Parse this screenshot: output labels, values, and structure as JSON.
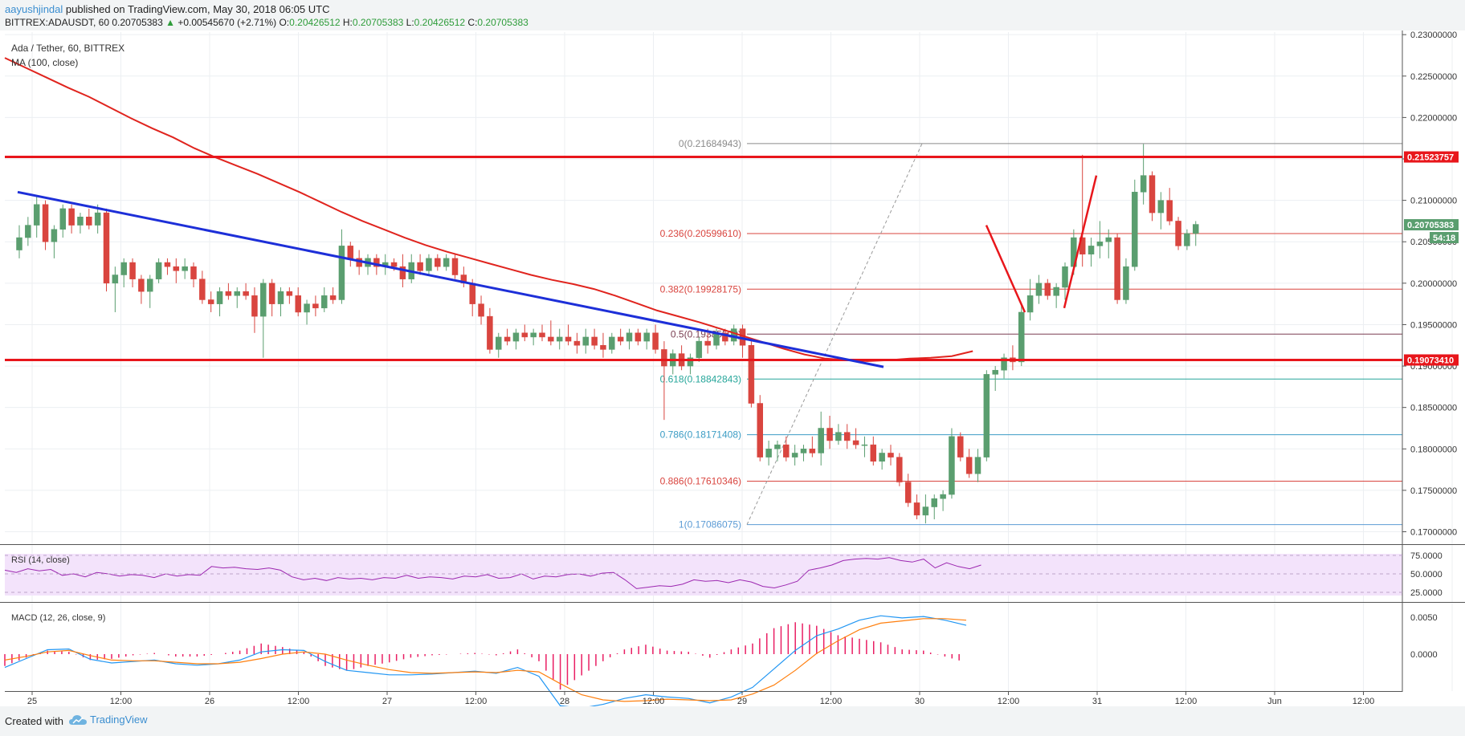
{
  "header": {
    "publisher": "aayushjindal",
    "publish_text": "published on TradingView.com, May 30, 2018 06:05 UTC",
    "symbol": "BITTREX:ADAUSDT, 60",
    "last_price": "0.20705383",
    "change": "+0.00545670 (+2.71%)",
    "open_label": "O:",
    "open": "0.20426512",
    "high_label": "H:",
    "high": "0.20705383",
    "low_label": "L:",
    "low": "0.20426512",
    "close_label": "C:",
    "close": "0.20705383"
  },
  "legend": {
    "instrument": "Ada / Tether, 60, BITTREX",
    "ma": "MA (100, close)",
    "rsi": "RSI (14, close)",
    "macd": "MACD (12, 26, close, 9)"
  },
  "price_axis": {
    "ticks": [
      "0.23000000",
      "0.22500000",
      "0.22000000",
      "0.21500000",
      "0.21000000",
      "0.20500000",
      "0.20000000",
      "0.19500000",
      "0.19000000",
      "0.18500000",
      "0.18000000",
      "0.17500000",
      "0.17000000"
    ],
    "current_price_tag": "0.20705383",
    "countdown_tag": "54:18",
    "resistance_tag": "0.21523757",
    "support_tag": "0.19073410"
  },
  "rsi_axis": {
    "ticks": [
      "75.0000",
      "50.0000",
      "25.0000"
    ]
  },
  "macd_axis": {
    "ticks": [
      "0.0050",
      "0.0000"
    ]
  },
  "time_axis": {
    "labels": [
      "25",
      "12:00",
      "26",
      "12:00",
      "27",
      "12:00",
      "28",
      "12:00",
      "29",
      "12:00",
      "30",
      "12:00",
      "31",
      "12:00",
      "Jun",
      "12:00"
    ]
  },
  "fib_labels": [
    "0(0.21684943)",
    "0.236(0.20599610)",
    "0.382(0.19928175)",
    "0.5(0.19385509)",
    "0.618(0.18842843)",
    "0.786(0.18171408)",
    "0.886(0.17610346)",
    "1(0.17086075)"
  ],
  "footer": {
    "created_with": "Created with",
    "brand": "TradingView"
  },
  "colors": {
    "up": "#5a9e6f",
    "down": "#d9453f",
    "ma": "#e0241e",
    "trendline": "#1d2fd8",
    "level": "#e8161b",
    "rsi": "#9c27b0",
    "macd": "#2196f3",
    "signal": "#ff7f0e",
    "hist": "#e91e63"
  },
  "chart_data": {
    "type": "candlestick",
    "title": "Ada / Tether, 60, BITTREX",
    "ylim": [
      0.1685,
      0.2305
    ],
    "candles": [
      [
        0.204,
        0.207,
        0.203,
        0.2055
      ],
      [
        0.2055,
        0.208,
        0.2045,
        0.207
      ],
      [
        0.207,
        0.2105,
        0.2055,
        0.2095
      ],
      [
        0.2095,
        0.21,
        0.204,
        0.205
      ],
      [
        0.205,
        0.207,
        0.203,
        0.2065
      ],
      [
        0.2065,
        0.2095,
        0.2055,
        0.209
      ],
      [
        0.209,
        0.2095,
        0.206,
        0.207
      ],
      [
        0.207,
        0.2085,
        0.206,
        0.208
      ],
      [
        0.208,
        0.209,
        0.2065,
        0.207
      ],
      [
        0.207,
        0.2095,
        0.206,
        0.2085
      ],
      [
        0.2085,
        0.209,
        0.199,
        0.2
      ],
      [
        0.2,
        0.202,
        0.1965,
        0.201
      ],
      [
        0.201,
        0.203,
        0.1995,
        0.2025
      ],
      [
        0.2025,
        0.203,
        0.1995,
        0.2005
      ],
      [
        0.2005,
        0.201,
        0.1975,
        0.199
      ],
      [
        0.199,
        0.201,
        0.197,
        0.2005
      ],
      [
        0.2005,
        0.203,
        0.2,
        0.2025
      ],
      [
        0.2025,
        0.203,
        0.201,
        0.202
      ],
      [
        0.202,
        0.203,
        0.2,
        0.2015
      ],
      [
        0.2015,
        0.203,
        0.2005,
        0.202
      ],
      [
        0.202,
        0.2025,
        0.1995,
        0.2005
      ],
      [
        0.2005,
        0.2015,
        0.1975,
        0.198
      ],
      [
        0.198,
        0.199,
        0.1965,
        0.1975
      ],
      [
        0.1975,
        0.1995,
        0.196,
        0.199
      ],
      [
        0.199,
        0.2,
        0.198,
        0.1985
      ],
      [
        0.1985,
        0.1995,
        0.197,
        0.199
      ],
      [
        0.199,
        0.2,
        0.198,
        0.1985
      ],
      [
        0.1985,
        0.1995,
        0.194,
        0.196
      ],
      [
        0.196,
        0.2005,
        0.191,
        0.2
      ],
      [
        0.2,
        0.2005,
        0.196,
        0.1975
      ],
      [
        0.1975,
        0.1995,
        0.196,
        0.199
      ],
      [
        0.199,
        0.1995,
        0.1975,
        0.1985
      ],
      [
        0.1985,
        0.1995,
        0.196,
        0.1965
      ],
      [
        0.1965,
        0.198,
        0.195,
        0.1975
      ],
      [
        0.1975,
        0.1985,
        0.196,
        0.197
      ],
      [
        0.197,
        0.1995,
        0.1965,
        0.1985
      ],
      [
        0.1985,
        0.1995,
        0.1975,
        0.198
      ],
      [
        0.198,
        0.2065,
        0.1975,
        0.2045
      ],
      [
        0.2045,
        0.205,
        0.202,
        0.203
      ],
      [
        0.203,
        0.204,
        0.201,
        0.202
      ],
      [
        0.202,
        0.2035,
        0.201,
        0.203
      ],
      [
        0.203,
        0.2035,
        0.201,
        0.202
      ],
      [
        0.202,
        0.2035,
        0.201,
        0.2025
      ],
      [
        0.2025,
        0.203,
        0.2015,
        0.202
      ],
      [
        0.202,
        0.2035,
        0.1995,
        0.2005
      ],
      [
        0.2005,
        0.2035,
        0.2,
        0.2025
      ],
      [
        0.2025,
        0.2035,
        0.201,
        0.2015
      ],
      [
        0.2015,
        0.2035,
        0.201,
        0.203
      ],
      [
        0.203,
        0.2035,
        0.2015,
        0.202
      ],
      [
        0.202,
        0.2035,
        0.2015,
        0.203
      ],
      [
        0.203,
        0.2035,
        0.2005,
        0.201
      ],
      [
        0.201,
        0.202,
        0.1995,
        0.2
      ],
      [
        0.2,
        0.2005,
        0.196,
        0.1975
      ],
      [
        0.1975,
        0.1985,
        0.195,
        0.196
      ],
      [
        0.196,
        0.197,
        0.1915,
        0.192
      ],
      [
        0.192,
        0.194,
        0.191,
        0.1935
      ],
      [
        0.1935,
        0.1945,
        0.1925,
        0.193
      ],
      [
        0.193,
        0.1945,
        0.192,
        0.194
      ],
      [
        0.194,
        0.195,
        0.193,
        0.1935
      ],
      [
        0.1935,
        0.1945,
        0.1925,
        0.194
      ],
      [
        0.194,
        0.195,
        0.193,
        0.1935
      ],
      [
        0.1935,
        0.1955,
        0.1925,
        0.193
      ],
      [
        0.193,
        0.1945,
        0.192,
        0.1935
      ],
      [
        0.1935,
        0.195,
        0.1925,
        0.193
      ],
      [
        0.193,
        0.194,
        0.1915,
        0.1925
      ],
      [
        0.1925,
        0.1945,
        0.1915,
        0.1935
      ],
      [
        0.1935,
        0.1945,
        0.192,
        0.1925
      ],
      [
        0.1925,
        0.194,
        0.191,
        0.192
      ],
      [
        0.192,
        0.194,
        0.1915,
        0.1935
      ],
      [
        0.1935,
        0.1945,
        0.1925,
        0.193
      ],
      [
        0.193,
        0.1945,
        0.192,
        0.194
      ],
      [
        0.194,
        0.1945,
        0.1925,
        0.193
      ],
      [
        0.193,
        0.1945,
        0.192,
        0.194
      ],
      [
        0.194,
        0.195,
        0.1915,
        0.192
      ],
      [
        0.192,
        0.193,
        0.1835,
        0.19
      ],
      [
        0.19,
        0.192,
        0.189,
        0.1915
      ],
      [
        0.1915,
        0.1925,
        0.1895,
        0.19
      ],
      [
        0.19,
        0.1915,
        0.189,
        0.191
      ],
      [
        0.191,
        0.1935,
        0.1905,
        0.193
      ],
      [
        0.193,
        0.1945,
        0.1915,
        0.1925
      ],
      [
        0.1925,
        0.1945,
        0.192,
        0.194
      ],
      [
        0.194,
        0.1945,
        0.1925,
        0.193
      ],
      [
        0.193,
        0.195,
        0.1925,
        0.1945
      ],
      [
        0.1945,
        0.195,
        0.191,
        0.1925
      ],
      [
        0.1925,
        0.193,
        0.185,
        0.1855
      ],
      [
        0.1855,
        0.1865,
        0.1785,
        0.179
      ],
      [
        0.179,
        0.181,
        0.178,
        0.18
      ],
      [
        0.18,
        0.181,
        0.1785,
        0.1805
      ],
      [
        0.1805,
        0.1815,
        0.1785,
        0.179
      ],
      [
        0.179,
        0.1805,
        0.178,
        0.1795
      ],
      [
        0.1795,
        0.1805,
        0.1785,
        0.18
      ],
      [
        0.18,
        0.1815,
        0.179,
        0.1795
      ],
      [
        0.1795,
        0.1845,
        0.178,
        0.1825
      ],
      [
        0.1825,
        0.184,
        0.18,
        0.181
      ],
      [
        0.181,
        0.183,
        0.1805,
        0.182
      ],
      [
        0.182,
        0.183,
        0.18,
        0.181
      ],
      [
        0.181,
        0.1825,
        0.18,
        0.1805
      ],
      [
        0.1805,
        0.1815,
        0.179,
        0.1805
      ],
      [
        0.1805,
        0.1815,
        0.178,
        0.1785
      ],
      [
        0.1785,
        0.18,
        0.1775,
        0.1795
      ],
      [
        0.1795,
        0.1805,
        0.178,
        0.179
      ],
      [
        0.179,
        0.1795,
        0.1755,
        0.176
      ],
      [
        0.176,
        0.177,
        0.173,
        0.1735
      ],
      [
        0.1735,
        0.1745,
        0.1715,
        0.172
      ],
      [
        0.172,
        0.1745,
        0.171,
        0.173
      ],
      [
        0.173,
        0.1745,
        0.1715,
        0.174
      ],
      [
        0.174,
        0.175,
        0.1725,
        0.1745
      ],
      [
        0.1745,
        0.1825,
        0.174,
        0.1815
      ],
      [
        0.1815,
        0.182,
        0.1785,
        0.179
      ],
      [
        0.179,
        0.18,
        0.1765,
        0.177
      ],
      [
        0.177,
        0.18,
        0.176,
        0.179
      ],
      [
        0.179,
        0.1895,
        0.1785,
        0.189
      ],
      [
        0.189,
        0.19,
        0.187,
        0.1895
      ],
      [
        0.1895,
        0.1915,
        0.1885,
        0.191
      ],
      [
        0.191,
        0.1925,
        0.1895,
        0.1905
      ],
      [
        0.1905,
        0.1975,
        0.19,
        0.1965
      ],
      [
        0.1965,
        0.2005,
        0.1955,
        0.1985
      ],
      [
        0.1985,
        0.201,
        0.1975,
        0.2
      ],
      [
        0.2,
        0.2005,
        0.198,
        0.1985
      ],
      [
        0.1985,
        0.2,
        0.197,
        0.1995
      ],
      [
        0.1995,
        0.2025,
        0.198,
        0.202
      ],
      [
        0.202,
        0.2065,
        0.201,
        0.2055
      ],
      [
        0.2055,
        0.2155,
        0.202,
        0.2035
      ],
      [
        0.2035,
        0.2055,
        0.202,
        0.2045
      ],
      [
        0.2045,
        0.2075,
        0.203,
        0.205
      ],
      [
        0.205,
        0.2065,
        0.203,
        0.2055
      ],
      [
        0.2055,
        0.206,
        0.1975,
        0.198
      ],
      [
        0.198,
        0.203,
        0.1975,
        0.202
      ],
      [
        0.202,
        0.2125,
        0.2015,
        0.211
      ],
      [
        0.211,
        0.2168,
        0.2095,
        0.213
      ],
      [
        0.213,
        0.2135,
        0.2075,
        0.2085
      ],
      [
        0.2085,
        0.211,
        0.2065,
        0.21
      ],
      [
        0.21,
        0.2115,
        0.207,
        0.2075
      ],
      [
        0.2075,
        0.208,
        0.204,
        0.2045
      ],
      [
        0.2045,
        0.2065,
        0.204,
        0.206
      ],
      [
        0.206,
        0.2075,
        0.2045,
        0.2071
      ]
    ],
    "ma100": [
      0.2272,
      0.226,
      0.2248,
      0.2236,
      0.2225,
      0.2212,
      0.2199,
      0.2187,
      0.2176,
      0.2163,
      0.2152,
      0.2142,
      0.2132,
      0.2121,
      0.211,
      0.2098,
      0.2086,
      0.2075,
      0.2065,
      0.2055,
      0.2046,
      0.2038,
      0.2031,
      0.2024,
      0.2017,
      0.201,
      0.2004,
      0.1999,
      0.1993,
      0.1985,
      0.1976,
      0.1967,
      0.196,
      0.1953,
      0.1945,
      0.1937,
      0.1929,
      0.1921,
      0.1914,
      0.1909,
      0.1907,
      0.1906,
      0.1907,
      0.1909,
      0.191,
      0.1912,
      0.1918
    ],
    "rsi14": [
      55,
      52,
      57,
      54,
      56,
      48,
      50,
      46,
      52,
      50,
      47,
      49,
      48,
      45,
      50,
      47,
      49,
      48,
      60,
      58,
      59,
      57,
      56,
      58,
      55,
      46,
      42,
      44,
      41,
      45,
      43,
      44,
      42,
      45,
      44,
      48,
      44,
      46,
      45,
      43,
      47,
      46,
      49,
      44,
      45,
      50,
      43,
      47,
      46,
      49,
      50,
      47,
      51,
      52,
      42,
      30,
      32,
      34,
      33,
      36,
      42,
      40,
      41,
      38,
      42,
      39,
      33,
      31,
      35,
      40,
      55,
      58,
      62,
      68,
      70,
      71,
      70,
      72,
      68,
      66,
      70,
      58,
      65,
      60,
      57,
      62
    ],
    "macd_line": [
      -0.0018,
      -0.0006,
      0.0006,
      0.0007,
      -0.0007,
      -0.0012,
      -0.001,
      -0.0008,
      -0.0013,
      -0.0015,
      -0.0013,
      -0.0008,
      0.0003,
      0.0006,
      0.0005,
      -0.001,
      -0.0022,
      -0.0025,
      -0.0028,
      -0.0028,
      -0.0027,
      -0.0025,
      -0.0023,
      -0.0026,
      -0.0018,
      -0.003,
      -0.007,
      -0.0073,
      -0.0068,
      -0.006,
      -0.0055,
      -0.0058,
      -0.006,
      -0.0066,
      -0.0058,
      -0.0045,
      -0.002,
      0.0005,
      0.0025,
      0.0034,
      0.0046,
      0.0052,
      0.0049,
      0.0051,
      0.0046,
      0.0039
    ],
    "signal_line": [
      -0.0008,
      -0.0003,
      0.0003,
      0.0005,
      -0.0002,
      -0.0008,
      -0.0009,
      -0.0009,
      -0.0011,
      -0.0013,
      -0.0013,
      -0.0011,
      -0.0006,
      0.0,
      0.0003,
      0.0,
      -0.0008,
      -0.0015,
      -0.0021,
      -0.0025,
      -0.0026,
      -0.0025,
      -0.0024,
      -0.0025,
      -0.0022,
      -0.0024,
      -0.004,
      -0.0055,
      -0.0062,
      -0.0064,
      -0.0063,
      -0.0061,
      -0.0062,
      -0.0063,
      -0.0062,
      -0.0054,
      -0.0042,
      -0.0022,
      0.0001,
      0.0018,
      0.0033,
      0.0042,
      0.0045,
      0.0048,
      0.0048,
      0.0046
    ]
  }
}
